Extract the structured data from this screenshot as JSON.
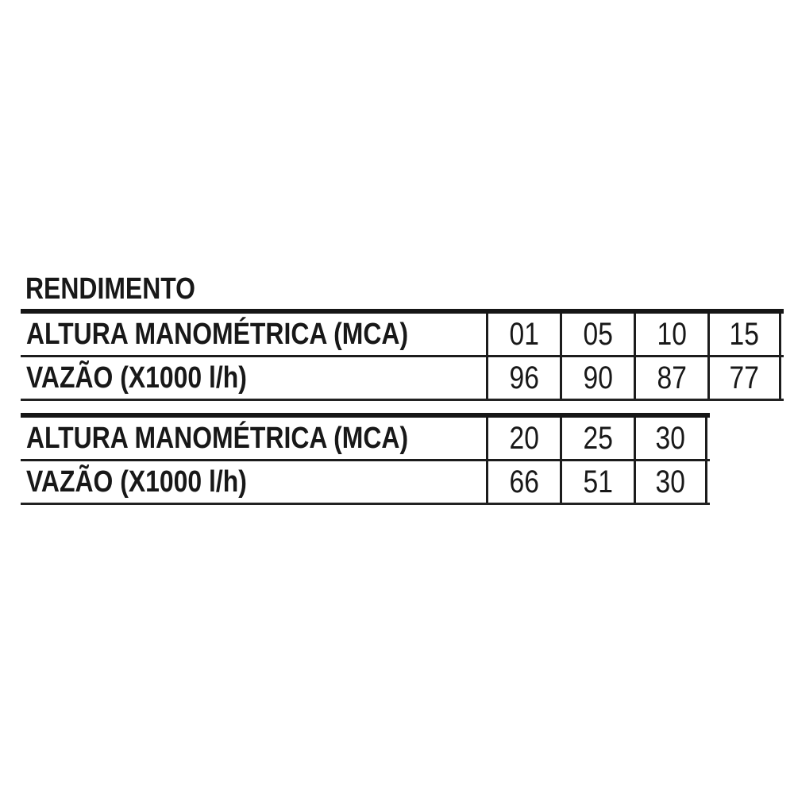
{
  "title": "RENDIMENTO",
  "colors": {
    "ink": "#1c1c1c",
    "background": "#ffffff"
  },
  "tables": [
    {
      "rows": [
        {
          "label": "ALTURA MANOMÉTRICA (MCA)",
          "values": [
            "01",
            "05",
            "10",
            "15"
          ]
        },
        {
          "label": "VAZÃO (X1000 l/h)",
          "values": [
            "96",
            "90",
            "87",
            "77"
          ]
        }
      ]
    },
    {
      "rows": [
        {
          "label": "ALTURA MANOMÉTRICA (MCA)",
          "values": [
            "20",
            "25",
            "30"
          ]
        },
        {
          "label": "VAZÃO (X1000 l/h)",
          "values": [
            "66",
            "51",
            "30"
          ]
        }
      ]
    }
  ],
  "chart_data": {
    "type": "table",
    "title": "RENDIMENTO",
    "x_header": "ALTURA MANOMÉTRICA (MCA)",
    "y_header": "VAZÃO (X1000 l/h)",
    "x": [
      1,
      5,
      10,
      15,
      20,
      25,
      30
    ],
    "series": [
      {
        "name": "VAZÃO (X1000 l/h)",
        "values": [
          96,
          90,
          87,
          77,
          66,
          51,
          30
        ]
      }
    ],
    "layout": "two stacked table blocks: first block columns 01/05/10/15, second block columns 20/25/30"
  }
}
